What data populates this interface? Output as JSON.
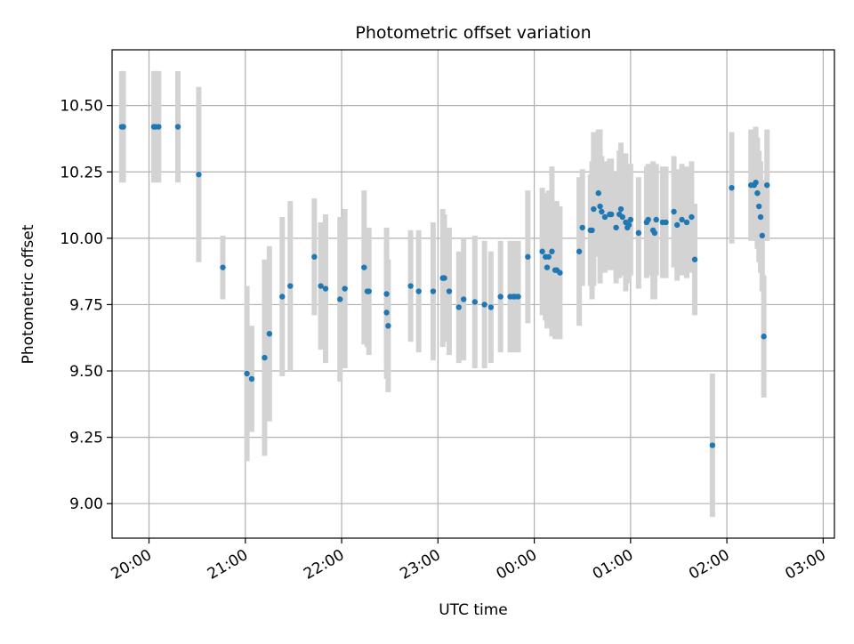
{
  "chart_data": {
    "type": "scatter",
    "title": "Photometric offset variation",
    "xlabel": "UTC time",
    "ylabel": "Photometric offset",
    "x_ticks": [
      "20:00",
      "21:00",
      "22:00",
      "23:00",
      "00:00",
      "01:00",
      "02:00",
      "03:00"
    ],
    "y_ticks": [
      "9.00",
      "9.25",
      "9.50",
      "9.75",
      "10.00",
      "10.25",
      "10.50"
    ],
    "xlim": [
      "19:37",
      "03:07"
    ],
    "ylim": [
      8.87,
      10.71
    ],
    "grid": true,
    "colors": {
      "marker": "#1f77b4",
      "errorbar": "#d3d3d3",
      "grid": "#b0b0b0"
    },
    "series": [
      {
        "x": [
          "19:43",
          "19:44",
          "20:03",
          "20:04",
          "20:06",
          "20:18",
          "20:31",
          "20:46",
          "21:01",
          "21:04",
          "21:12",
          "21:15",
          "21:23",
          "21:28",
          "21:43",
          "21:47",
          "21:50",
          "21:59",
          "22:02",
          "22:14",
          "22:16",
          "22:17",
          "22:28",
          "22:28",
          "22:29",
          "22:43",
          "22:48",
          "22:57",
          "23:03",
          "23:04",
          "23:07",
          "23:13",
          "23:16",
          "23:23",
          "23:29",
          "23:33",
          "23:39",
          "23:45",
          "23:47",
          "23:48",
          "23:50",
          "23:56",
          "00:05",
          "00:07",
          "00:08",
          "00:09",
          "00:11",
          "00:13",
          "00:14",
          "00:16",
          "00:28",
          "00:30",
          "00:35",
          "00:36",
          "00:37",
          "00:40",
          "00:41",
          "00:42",
          "00:44",
          "00:47",
          "00:48",
          "00:51",
          "00:53",
          "00:54",
          "00:55",
          "00:57",
          "00:58",
          "00:59",
          "01:00",
          "01:05",
          "01:10",
          "01:11",
          "01:14",
          "01:15",
          "01:16",
          "01:20",
          "01:22",
          "01:27",
          "01:29",
          "01:32",
          "01:35",
          "01:38",
          "01:40",
          "01:51",
          "02:03",
          "02:15",
          "02:17",
          "02:18",
          "02:19",
          "02:20",
          "02:21",
          "02:22",
          "02:23",
          "02:25"
        ],
        "y": [
          10.42,
          10.42,
          10.42,
          10.42,
          10.42,
          10.42,
          10.24,
          9.89,
          9.49,
          9.47,
          9.55,
          9.64,
          9.78,
          9.82,
          9.93,
          9.82,
          9.81,
          9.77,
          9.81,
          9.89,
          9.8,
          9.8,
          9.79,
          9.72,
          9.67,
          9.82,
          9.8,
          9.8,
          9.85,
          9.85,
          9.8,
          9.74,
          9.77,
          9.76,
          9.75,
          9.74,
          9.78,
          9.78,
          9.78,
          9.78,
          9.78,
          9.93,
          9.95,
          9.93,
          9.89,
          9.93,
          9.95,
          9.88,
          9.88,
          9.87,
          9.95,
          10.04,
          10.03,
          10.03,
          10.11,
          10.17,
          10.12,
          10.1,
          10.08,
          10.09,
          10.09,
          10.04,
          10.09,
          10.11,
          10.08,
          10.06,
          10.04,
          10.05,
          10.07,
          10.02,
          10.06,
          10.07,
          10.03,
          10.02,
          10.07,
          10.06,
          10.06,
          10.1,
          10.05,
          10.07,
          10.06,
          10.08,
          9.92,
          9.22,
          10.19,
          10.2,
          10.2,
          10.21,
          10.17,
          10.12,
          10.08,
          10.01,
          9.63,
          10.2
        ],
        "yerr": [
          0.21,
          0.21,
          0.21,
          0.21,
          0.21,
          0.21,
          0.33,
          0.12,
          0.33,
          0.2,
          0.37,
          0.33,
          0.3,
          0.32,
          0.22,
          0.24,
          0.28,
          0.31,
          0.3,
          0.29,
          0.21,
          0.24,
          0.25,
          0.25,
          0.25,
          0.21,
          0.23,
          0.26,
          0.26,
          0.24,
          0.24,
          0.21,
          0.23,
          0.25,
          0.24,
          0.21,
          0.21,
          0.21,
          0.21,
          0.21,
          0.21,
          0.25,
          0.24,
          0.24,
          0.23,
          0.25,
          0.32,
          0.26,
          0.26,
          0.25,
          0.28,
          0.22,
          0.21,
          0.26,
          0.29,
          0.24,
          0.29,
          0.21,
          0.21,
          0.21,
          0.21,
          0.21,
          0.24,
          0.25,
          0.22,
          0.26,
          0.21,
          0.22,
          0.21,
          0.21,
          0.21,
          0.21,
          0.26,
          0.25,
          0.21,
          0.21,
          0.21,
          0.21,
          0.21,
          0.21,
          0.21,
          0.21,
          0.21,
          0.27,
          0.21,
          0.21,
          0.21,
          0.21,
          0.21,
          0.21,
          0.21,
          0.21,
          0.23,
          0.21
        ]
      }
    ]
  }
}
